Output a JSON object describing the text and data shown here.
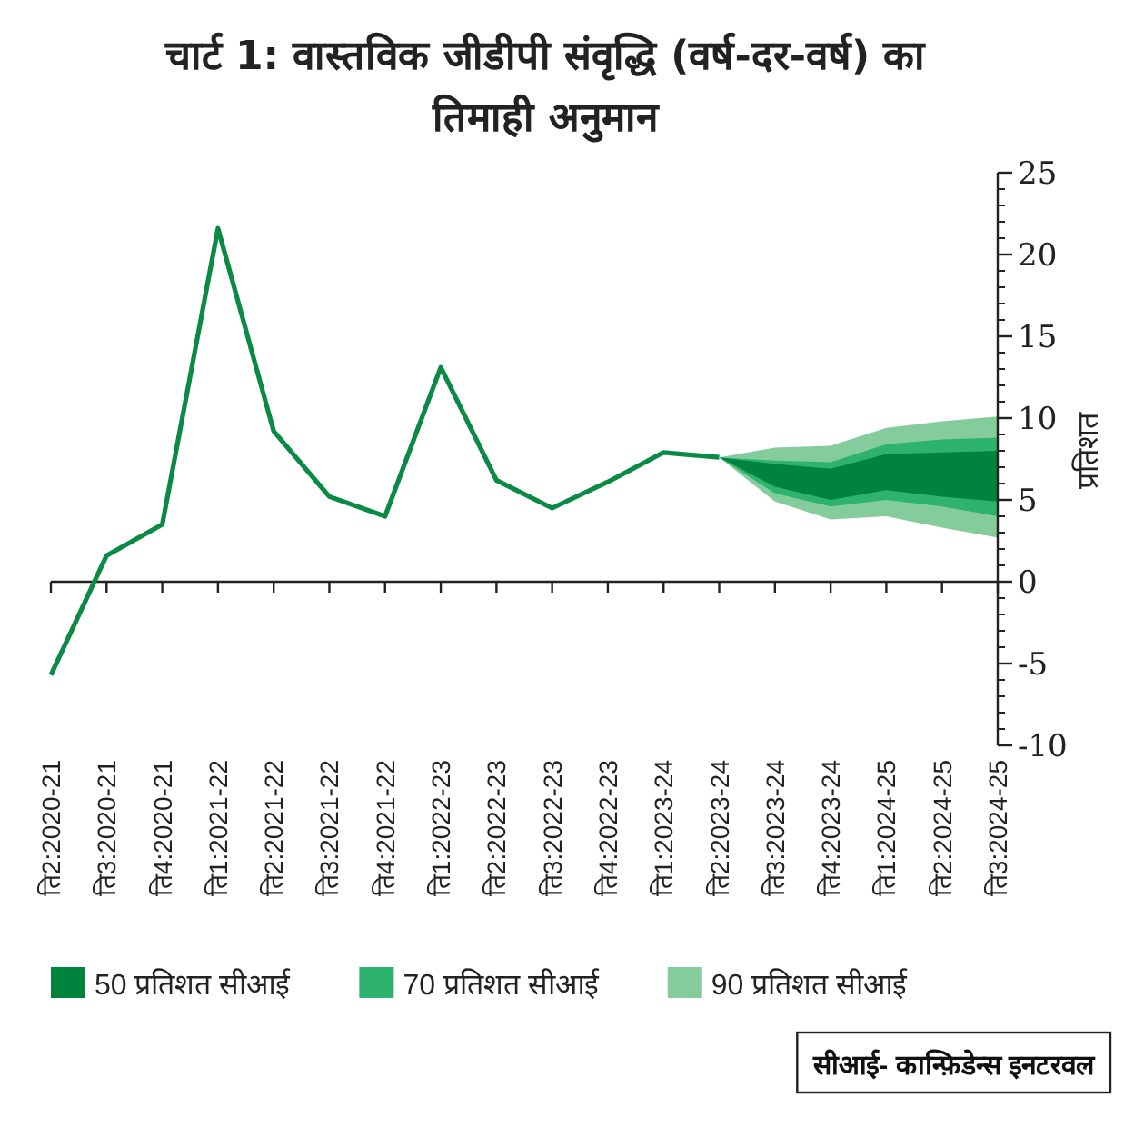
{
  "chart_data": {
    "type": "line",
    "title": "चार्ट 1: वास्तविक जीडीपी संवृद्धि (वर्ष-दर-वर्ष) का तिमाही अनुमान",
    "ylabel": "प्रतिशत",
    "categories": [
      "ति2:2020-21",
      "ति3:2020-21",
      "ति4:2020-21",
      "ति1:2021-22",
      "ति2:2021-22",
      "ति3:2021-22",
      "ति4:2021-22",
      "ति1:2022-23",
      "ति2:2022-23",
      "ति3:2022-23",
      "ति4:2022-23",
      "ति1:2023-24",
      "ति2:2023-24",
      "ति3:2023-24",
      "ति4:2023-24",
      "ति1:2024-25",
      "ति2:2024-25",
      "ति3:2024-25"
    ],
    "series": [
      {
        "type": "line",
        "color": "#0a8a45",
        "values": [
          -5.7,
          1.6,
          3.5,
          21.6,
          9.2,
          5.2,
          4.0,
          13.1,
          6.2,
          4.5,
          6.1,
          7.9,
          7.6,
          null,
          null,
          null,
          null,
          null
        ]
      },
      {
        "type": "area",
        "name": "50 प्रतिशत सीआई",
        "color": "#00843d",
        "values": [
          null,
          null,
          null,
          null,
          null,
          null,
          null,
          null,
          null,
          null,
          null,
          null,
          null,
          null,
          null,
          null,
          null,
          null
        ],
        "lower": [
          null,
          null,
          null,
          null,
          null,
          null,
          null,
          null,
          null,
          null,
          null,
          null,
          7.6,
          5.8,
          5.0,
          5.6,
          5.2,
          4.9
        ],
        "upper": [
          null,
          null,
          null,
          null,
          null,
          null,
          null,
          null,
          null,
          null,
          null,
          null,
          7.6,
          7.2,
          6.9,
          7.8,
          7.9,
          8.0
        ]
      },
      {
        "type": "area",
        "name": "70 प्रतिशत सीआई",
        "color": "#2db36e",
        "values": [
          null,
          null,
          null,
          null,
          null,
          null,
          null,
          null,
          null,
          null,
          null,
          null,
          null,
          null,
          null,
          null,
          null,
          null
        ],
        "lower": [
          null,
          null,
          null,
          null,
          null,
          null,
          null,
          null,
          null,
          null,
          null,
          null,
          7.6,
          5.4,
          4.6,
          5.0,
          4.6,
          4.0
        ],
        "upper": [
          null,
          null,
          null,
          null,
          null,
          null,
          null,
          null,
          null,
          null,
          null,
          null,
          7.6,
          7.4,
          7.3,
          8.4,
          8.7,
          8.8
        ]
      },
      {
        "type": "area",
        "name": "90 प्रतिशत सीआई",
        "color": "#85cc9d",
        "values": [
          null,
          null,
          null,
          null,
          null,
          null,
          null,
          null,
          null,
          null,
          null,
          null,
          null,
          null,
          null,
          null,
          null,
          null
        ],
        "lower": [
          null,
          null,
          null,
          null,
          null,
          null,
          null,
          null,
          null,
          null,
          null,
          null,
          7.6,
          4.9,
          3.8,
          4.0,
          3.3,
          2.7
        ],
        "upper": [
          null,
          null,
          null,
          null,
          null,
          null,
          null,
          null,
          null,
          null,
          null,
          null,
          7.6,
          8.2,
          8.3,
          9.4,
          9.8,
          10.1
        ]
      }
    ],
    "ylim": [
      -10,
      25
    ],
    "yticks": [
      25,
      20,
      15,
      10,
      5,
      0,
      -5,
      -10
    ],
    "legend": "bottom",
    "marker": "none",
    "line_style": "solid",
    "annotations": [
      "सीआई- कान्फ़िडेन्स इनटरवल"
    ]
  }
}
